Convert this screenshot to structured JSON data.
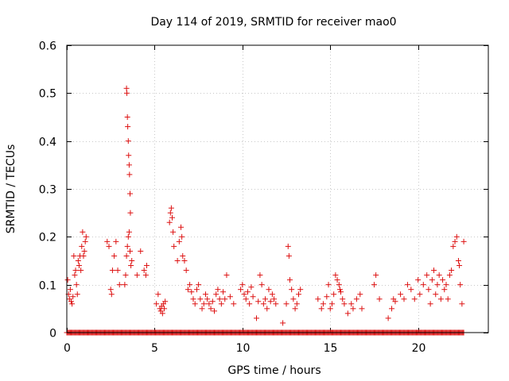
{
  "chart_data": {
    "type": "scatter",
    "title": "Day 114 of 2019, SRMTID for receiver mao0",
    "xlabel": "GPS time / hours",
    "ylabel": "SRMTID / TECUs",
    "xlim": [
      0,
      24
    ],
    "ylim": [
      0,
      0.6
    ],
    "xticks": [
      0,
      5,
      10,
      15,
      20
    ],
    "xtick_labels": [
      "0",
      "5",
      "10",
      "15",
      "20"
    ],
    "yticks": [
      0,
      0.1,
      0.2,
      0.3,
      0.4,
      0.5,
      0.6
    ],
    "ytick_labels": [
      "0",
      "0.1",
      "0.2",
      "0.3",
      "0.4",
      "0.5",
      "0.6"
    ],
    "grid": true,
    "legend": "none",
    "marker": "plus",
    "color": "#dd1111",
    "zero_value_span_hours": [
      0,
      22.6
    ],
    "zero_value_step_hours": 0.05,
    "series": [
      {
        "name": "SRMTID",
        "points": [
          [
            0.05,
            0.11
          ],
          [
            0.1,
            0.08
          ],
          [
            0.15,
            0.07
          ],
          [
            0.2,
            0.09
          ],
          [
            0.25,
            0.065
          ],
          [
            0.3,
            0.06
          ],
          [
            0.35,
            0.075
          ],
          [
            0.4,
            0.16
          ],
          [
            0.45,
            0.12
          ],
          [
            0.5,
            0.13
          ],
          [
            0.55,
            0.1
          ],
          [
            0.6,
            0.08
          ],
          [
            0.65,
            0.15
          ],
          [
            0.7,
            0.14
          ],
          [
            0.75,
            0.16
          ],
          [
            0.8,
            0.13
          ],
          [
            0.85,
            0.18
          ],
          [
            0.9,
            0.21
          ],
          [
            0.95,
            0.16
          ],
          [
            1.0,
            0.17
          ],
          [
            1.05,
            0.19
          ],
          [
            1.1,
            0.2
          ],
          [
            2.3,
            0.19
          ],
          [
            2.4,
            0.18
          ],
          [
            2.5,
            0.09
          ],
          [
            2.55,
            0.08
          ],
          [
            2.6,
            0.13
          ],
          [
            2.7,
            0.16
          ],
          [
            2.8,
            0.19
          ],
          [
            2.9,
            0.13
          ],
          [
            3.0,
            0.1
          ],
          [
            3.3,
            0.1
          ],
          [
            3.35,
            0.12
          ],
          [
            3.4,
            0.16
          ],
          [
            3.45,
            0.18
          ],
          [
            3.5,
            0.2
          ],
          [
            3.55,
            0.21
          ],
          [
            3.6,
            0.17
          ],
          [
            3.65,
            0.14
          ],
          [
            3.7,
            0.15
          ],
          [
            3.4,
            0.51
          ],
          [
            3.42,
            0.5
          ],
          [
            3.45,
            0.45
          ],
          [
            3.47,
            0.43
          ],
          [
            3.5,
            0.4
          ],
          [
            3.52,
            0.37
          ],
          [
            3.55,
            0.35
          ],
          [
            3.57,
            0.33
          ],
          [
            3.6,
            0.29
          ],
          [
            3.62,
            0.25
          ],
          [
            4.0,
            0.12
          ],
          [
            4.2,
            0.17
          ],
          [
            4.4,
            0.13
          ],
          [
            4.5,
            0.12
          ],
          [
            4.55,
            0.14
          ],
          [
            5.1,
            0.06
          ],
          [
            5.2,
            0.08
          ],
          [
            5.3,
            0.05
          ],
          [
            5.35,
            0.045
          ],
          [
            5.4,
            0.055
          ],
          [
            5.45,
            0.04
          ],
          [
            5.5,
            0.06
          ],
          [
            5.55,
            0.05
          ],
          [
            5.6,
            0.065
          ],
          [
            5.85,
            0.23
          ],
          [
            5.9,
            0.25
          ],
          [
            5.95,
            0.26
          ],
          [
            6.0,
            0.24
          ],
          [
            6.05,
            0.21
          ],
          [
            6.1,
            0.18
          ],
          [
            6.3,
            0.15
          ],
          [
            6.4,
            0.19
          ],
          [
            6.5,
            0.22
          ],
          [
            6.55,
            0.2
          ],
          [
            6.6,
            0.16
          ],
          [
            6.7,
            0.15
          ],
          [
            6.8,
            0.13
          ],
          [
            6.9,
            0.09
          ],
          [
            7.0,
            0.1
          ],
          [
            7.1,
            0.085
          ],
          [
            7.2,
            0.07
          ],
          [
            7.3,
            0.06
          ],
          [
            7.4,
            0.09
          ],
          [
            7.5,
            0.1
          ],
          [
            7.6,
            0.07
          ],
          [
            7.7,
            0.05
          ],
          [
            7.8,
            0.06
          ],
          [
            7.9,
            0.08
          ],
          [
            8.0,
            0.07
          ],
          [
            8.1,
            0.06
          ],
          [
            8.2,
            0.05
          ],
          [
            8.3,
            0.065
          ],
          [
            8.4,
            0.045
          ],
          [
            8.5,
            0.08
          ],
          [
            8.6,
            0.09
          ],
          [
            8.7,
            0.07
          ],
          [
            8.8,
            0.06
          ],
          [
            8.9,
            0.085
          ],
          [
            9.0,
            0.07
          ],
          [
            9.1,
            0.12
          ],
          [
            9.3,
            0.075
          ],
          [
            9.5,
            0.06
          ],
          [
            9.9,
            0.09
          ],
          [
            10.0,
            0.1
          ],
          [
            10.1,
            0.08
          ],
          [
            10.2,
            0.07
          ],
          [
            10.3,
            0.085
          ],
          [
            10.4,
            0.06
          ],
          [
            10.5,
            0.095
          ],
          [
            10.6,
            0.075
          ],
          [
            10.8,
            0.03
          ],
          [
            10.9,
            0.065
          ],
          [
            11.0,
            0.12
          ],
          [
            11.1,
            0.1
          ],
          [
            11.2,
            0.06
          ],
          [
            11.3,
            0.07
          ],
          [
            11.4,
            0.05
          ],
          [
            11.5,
            0.09
          ],
          [
            11.6,
            0.065
          ],
          [
            11.7,
            0.08
          ],
          [
            11.8,
            0.07
          ],
          [
            11.9,
            0.06
          ],
          [
            12.3,
            0.02
          ],
          [
            12.5,
            0.06
          ],
          [
            12.6,
            0.18
          ],
          [
            12.65,
            0.16
          ],
          [
            12.7,
            0.11
          ],
          [
            12.8,
            0.09
          ],
          [
            12.9,
            0.07
          ],
          [
            13.0,
            0.05
          ],
          [
            13.1,
            0.06
          ],
          [
            13.2,
            0.08
          ],
          [
            13.3,
            0.09
          ],
          [
            14.3,
            0.07
          ],
          [
            14.5,
            0.05
          ],
          [
            14.6,
            0.06
          ],
          [
            14.8,
            0.075
          ],
          [
            14.9,
            0.1
          ],
          [
            15.0,
            0.05
          ],
          [
            15.1,
            0.06
          ],
          [
            15.2,
            0.08
          ],
          [
            15.3,
            0.12
          ],
          [
            15.4,
            0.11
          ],
          [
            15.5,
            0.1
          ],
          [
            15.55,
            0.09
          ],
          [
            15.6,
            0.085
          ],
          [
            15.7,
            0.07
          ],
          [
            15.8,
            0.06
          ],
          [
            16.0,
            0.04
          ],
          [
            16.2,
            0.06
          ],
          [
            16.3,
            0.05
          ],
          [
            16.5,
            0.07
          ],
          [
            16.7,
            0.08
          ],
          [
            16.8,
            0.05
          ],
          [
            17.5,
            0.1
          ],
          [
            17.6,
            0.12
          ],
          [
            17.8,
            0.07
          ],
          [
            18.3,
            0.03
          ],
          [
            18.5,
            0.05
          ],
          [
            18.6,
            0.07
          ],
          [
            18.7,
            0.065
          ],
          [
            19.0,
            0.08
          ],
          [
            19.2,
            0.07
          ],
          [
            19.4,
            0.1
          ],
          [
            19.6,
            0.09
          ],
          [
            19.8,
            0.07
          ],
          [
            20.0,
            0.11
          ],
          [
            20.1,
            0.08
          ],
          [
            20.3,
            0.1
          ],
          [
            20.5,
            0.12
          ],
          [
            20.6,
            0.09
          ],
          [
            20.7,
            0.06
          ],
          [
            20.8,
            0.11
          ],
          [
            20.9,
            0.13
          ],
          [
            21.0,
            0.08
          ],
          [
            21.1,
            0.1
          ],
          [
            21.2,
            0.12
          ],
          [
            21.3,
            0.07
          ],
          [
            21.4,
            0.11
          ],
          [
            21.5,
            0.09
          ],
          [
            21.6,
            0.1
          ],
          [
            21.7,
            0.07
          ],
          [
            21.8,
            0.12
          ],
          [
            21.9,
            0.13
          ],
          [
            22.0,
            0.18
          ],
          [
            22.1,
            0.19
          ],
          [
            22.2,
            0.2
          ],
          [
            22.3,
            0.15
          ],
          [
            22.35,
            0.14
          ],
          [
            22.4,
            0.1
          ],
          [
            22.5,
            0.06
          ],
          [
            22.6,
            0.19
          ]
        ]
      }
    ]
  }
}
